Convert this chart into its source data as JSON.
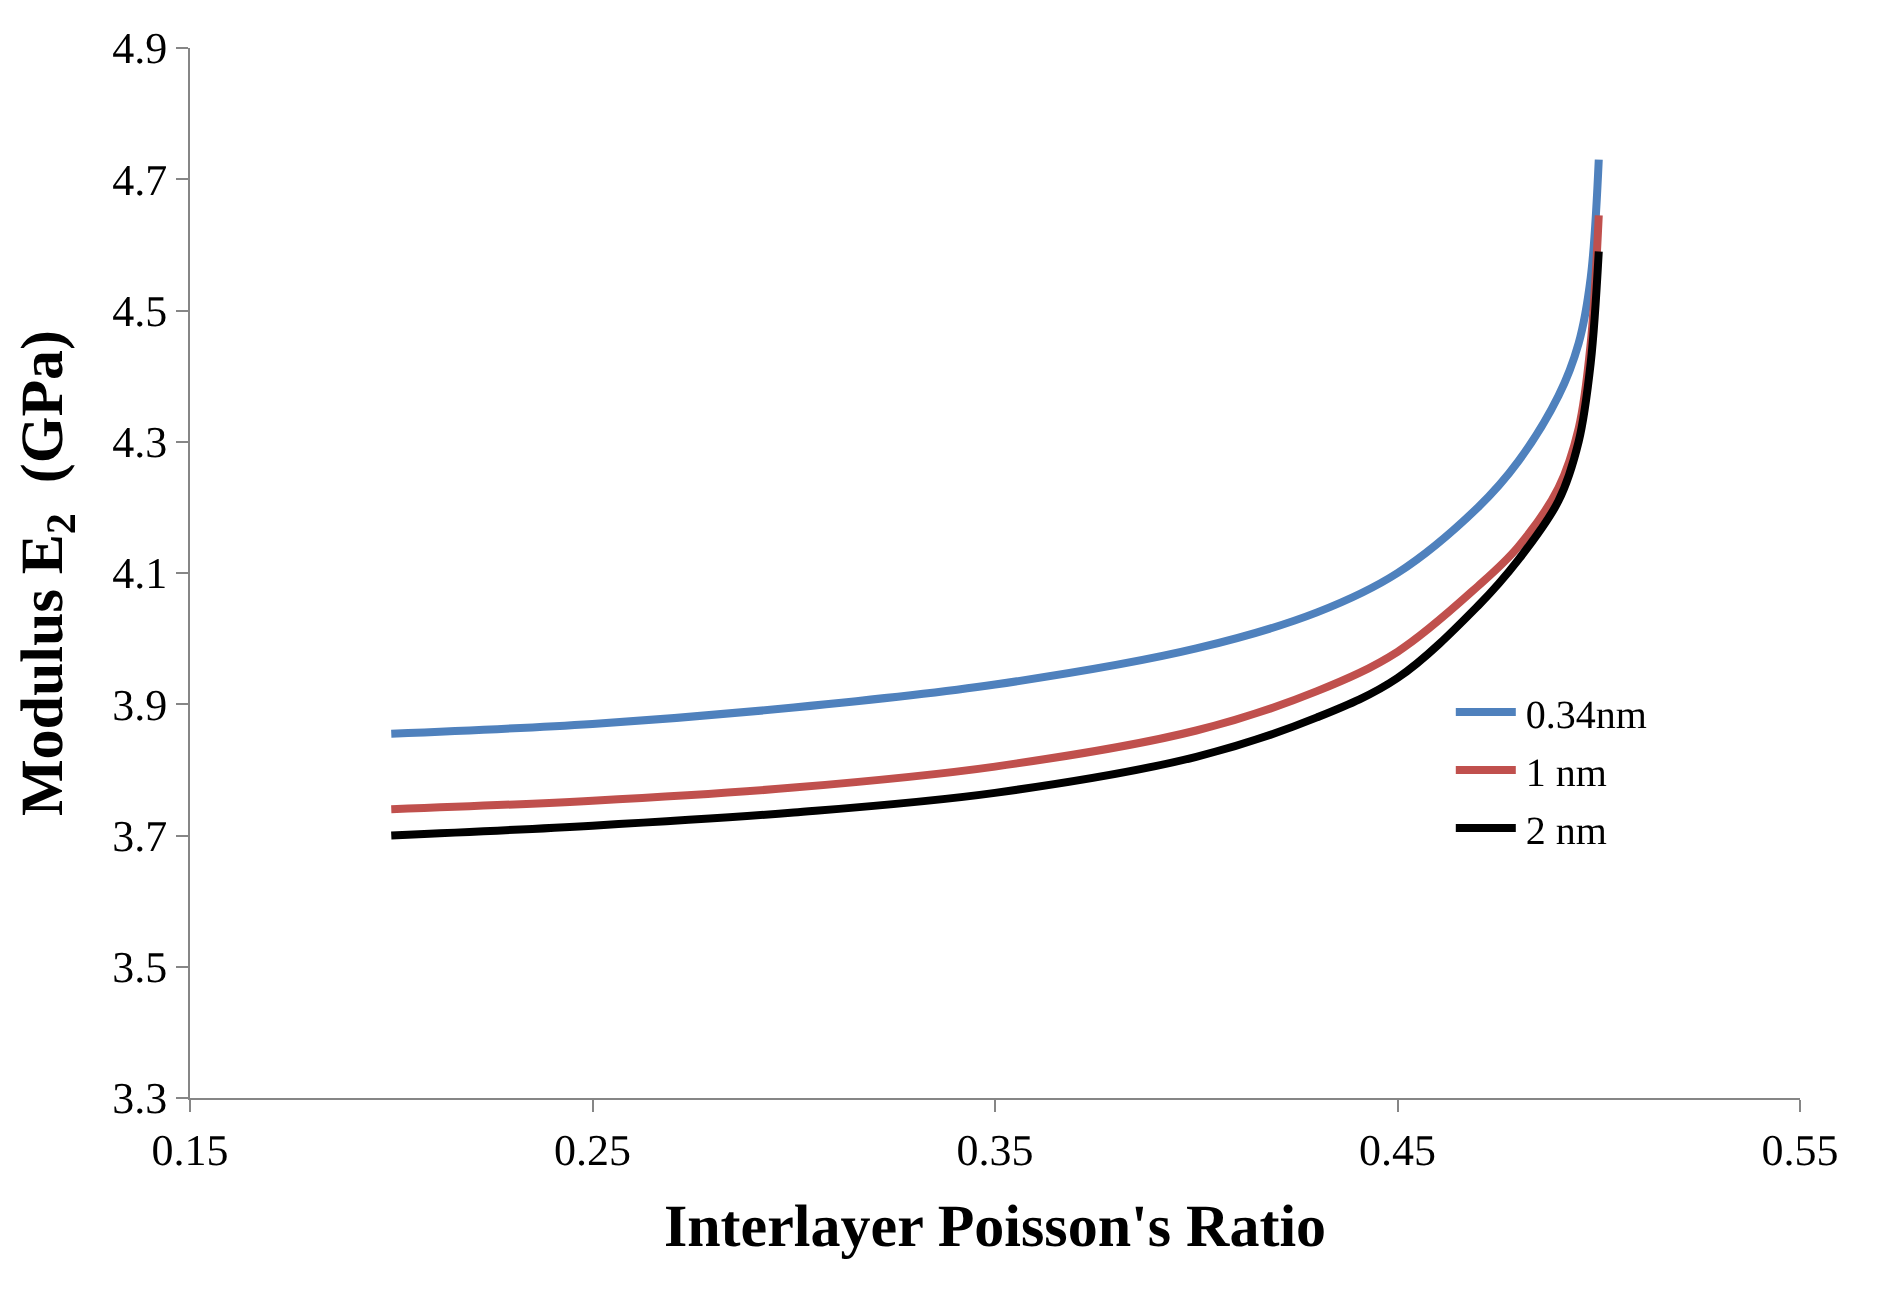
{
  "chart_data": {
    "type": "line",
    "xlabel": "Interlayer Poisson's Ratio",
    "ylabel": "Modulus E$_{2}$  (GPa)",
    "xlim": [
      0.15,
      0.55
    ],
    "xticks": [
      {
        "value": 0.15,
        "label": "0.15"
      },
      {
        "value": 0.25,
        "label": "0.25"
      },
      {
        "value": 0.35,
        "label": "0.35"
      },
      {
        "value": 0.45,
        "label": "0.45"
      },
      {
        "value": 0.55,
        "label": "0.55"
      }
    ],
    "ylim": [
      3.3,
      4.9
    ],
    "yticks": [
      {
        "value": 3.3,
        "label": "3.3"
      },
      {
        "value": 3.5,
        "label": "3.5"
      },
      {
        "value": 3.7,
        "label": "3.7"
      },
      {
        "value": 3.9,
        "label": "3.9"
      },
      {
        "value": 4.1,
        "label": "4.1"
      },
      {
        "value": 4.3,
        "label": "4.3"
      },
      {
        "value": 4.5,
        "label": "4.5"
      },
      {
        "value": 4.7,
        "label": "4.7"
      },
      {
        "value": 4.9,
        "label": "4.9"
      }
    ],
    "x": [
      0.2,
      0.25,
      0.3,
      0.35,
      0.4,
      0.43,
      0.45,
      0.47,
      0.48,
      0.49,
      0.495,
      0.498,
      0.5
    ],
    "series": [
      {
        "name": "0.34nm",
        "color": "#4f81bd",
        "values": [
          3.855,
          3.87,
          3.895,
          3.93,
          3.985,
          4.04,
          4.1,
          4.2,
          4.27,
          4.37,
          4.45,
          4.55,
          4.73
        ]
      },
      {
        "name": "1 nm",
        "color": "#c0504d",
        "values": [
          3.74,
          3.753,
          3.773,
          3.805,
          3.86,
          3.92,
          3.98,
          4.08,
          4.14,
          4.23,
          4.32,
          4.45,
          4.645
        ]
      },
      {
        "name": "2 nm",
        "color": "#000000",
        "values": [
          3.7,
          3.715,
          3.735,
          3.765,
          3.82,
          3.88,
          3.94,
          4.05,
          4.12,
          4.21,
          4.3,
          4.42,
          4.59
        ]
      }
    ],
    "legend": "right",
    "grid": false,
    "marker": "none",
    "line_style": "solid"
  }
}
